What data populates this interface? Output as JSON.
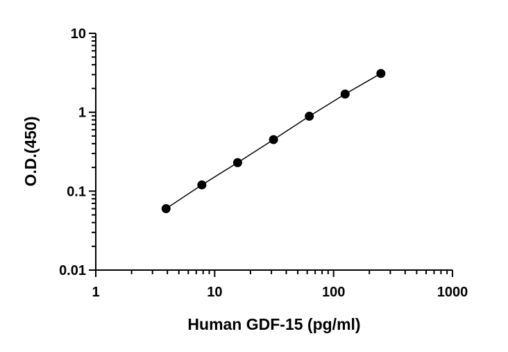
{
  "chart_data": {
    "type": "scatter",
    "title": "",
    "xlabel": "Human GDF-15 (pg/ml)",
    "ylabel": "O.D.(450)",
    "x_scale": "log",
    "y_scale": "log",
    "xlim": [
      1,
      1000
    ],
    "ylim": [
      0.01,
      10
    ],
    "x_ticks": [
      "1",
      "10",
      "100",
      "1000"
    ],
    "y_ticks": [
      "0.01",
      "0.1",
      "1",
      "10"
    ],
    "grid": false,
    "legend": "none",
    "series": [
      {
        "x": [
          3.9,
          7.8,
          15.6,
          31.25,
          62.5,
          125,
          250
        ],
        "y": [
          0.06,
          0.12,
          0.23,
          0.45,
          0.89,
          1.7,
          3.1
        ],
        "fit_line": true
      }
    ],
    "colors": {
      "marker": "#000000",
      "line": "#000000"
    }
  }
}
